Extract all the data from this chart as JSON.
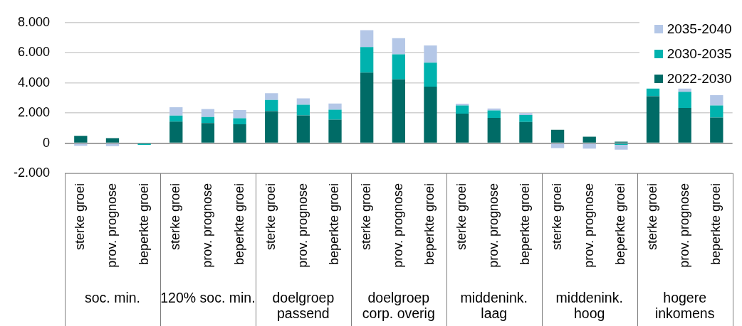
{
  "chart_data": {
    "type": "bar",
    "stacked": true,
    "categories": [
      "sterke groei",
      "prov. prognose",
      "beperkte groei",
      "sterke groei",
      "prov. prognose",
      "beperkte groei",
      "sterke groei",
      "prov. prognose",
      "beperkte groei",
      "sterke groei",
      "prov. prognose",
      "beperkte groei",
      "sterke groei",
      "prov. prognose",
      "beperkte groei",
      "sterke groei",
      "prov. prognose",
      "beperkte groei",
      "sterke groei",
      "prov. prognose",
      "beperkte groei"
    ],
    "annotations": [
      "soc. min.",
      "120% soc. min.",
      "doelgroep passend",
      "doelgroep corp. overig",
      "middenink. laag",
      "middenink. hoog",
      "hogere inkomens"
    ],
    "series": [
      {
        "name": "2022-2030",
        "color": "#006b66",
        "values": [
          480,
          330,
          0,
          1430,
          1340,
          1250,
          2120,
          1840,
          1560,
          4680,
          4230,
          3750,
          1960,
          1670,
          1400,
          890,
          430,
          100,
          3110,
          2330,
          1700
        ]
      },
      {
        "name": "2030-2035",
        "color": "#00b2ae",
        "values": [
          0,
          0,
          -120,
          400,
          400,
          400,
          740,
          710,
          660,
          1700,
          1660,
          1590,
          540,
          500,
          470,
          0,
          0,
          -110,
          510,
          1080,
          800
        ]
      },
      {
        "name": "2035-2040",
        "color": "#b4c7e7",
        "values": [
          -170,
          -200,
          0,
          550,
          530,
          540,
          450,
          420,
          410,
          1110,
          1080,
          1140,
          120,
          130,
          120,
          -330,
          -360,
          -320,
          0,
          210,
          680
        ]
      }
    ],
    "ylim": [
      -2000,
      8000
    ],
    "yticks": [
      {
        "value": -2000,
        "label": "-2.000"
      },
      0,
      {
        "value": 2000,
        "label": "2.000"
      },
      {
        "value": 4000,
        "label": "4.000"
      },
      {
        "value": 6000,
        "label": "6.000"
      },
      {
        "value": 8000,
        "label": "8.000"
      }
    ],
    "grid": "y",
    "legend": "top right"
  }
}
